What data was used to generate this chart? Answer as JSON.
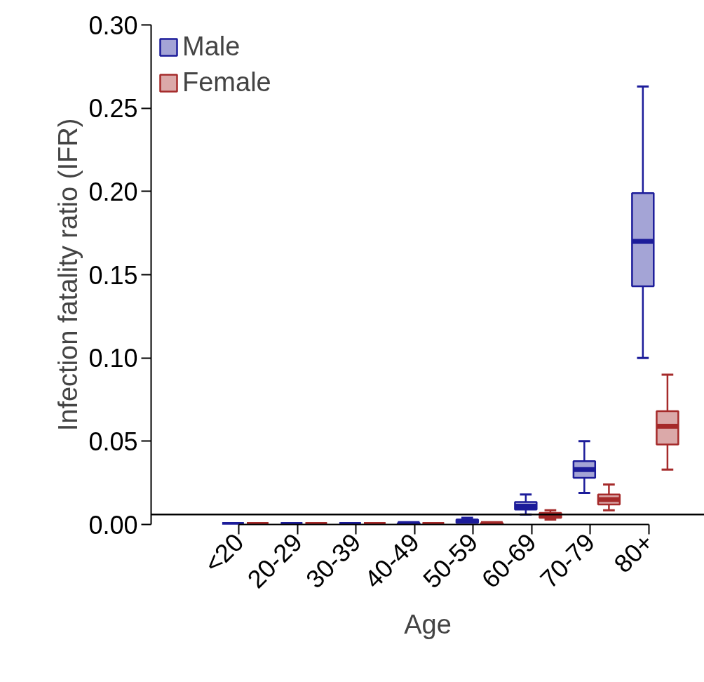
{
  "chart_data": {
    "type": "box",
    "xlabel": "Age",
    "ylabel": "Infection fatality ratio (IFR)",
    "categories": [
      "<20",
      "20-29",
      "30-39",
      "40-49",
      "50-59",
      "60-69",
      "70-79",
      "80+"
    ],
    "ylim": [
      0,
      0.3
    ],
    "yticks": [
      {
        "value": 0,
        "label": "0.00"
      },
      {
        "value": 0.05,
        "label": "0.05"
      },
      {
        "value": 0.1,
        "label": "0.10"
      },
      {
        "value": 0.15,
        "label": "0.15"
      },
      {
        "value": 0.2,
        "label": "0.20"
      },
      {
        "value": 0.25,
        "label": "0.25"
      },
      {
        "value": 0.3,
        "label": "0.30"
      }
    ],
    "legend": "top left",
    "grid": false,
    "ref_lines": [
      {
        "axis": "y",
        "value": 0.006,
        "color": "#000000"
      }
    ],
    "series": [
      {
        "name": "Male",
        "color": "#1c1c9a",
        "boxes": [
          {
            "low": 0,
            "q1": 0,
            "median": 0,
            "q3": 0,
            "high": 0
          },
          {
            "low": 0,
            "q1": 0,
            "median": 0,
            "q3": 0,
            "high": 0
          },
          {
            "low": 0,
            "q1": 0,
            "median": 0,
            "q3": 0,
            "high": 0
          },
          {
            "low": 0,
            "q1": 0,
            "median": 0.0005,
            "q3": 0.001,
            "high": 0.001
          },
          {
            "low": 0.001,
            "q1": 0.001,
            "median": 0.002,
            "q3": 0.003,
            "high": 0.004
          },
          {
            "low": 0.006,
            "q1": 0.009,
            "median": 0.011,
            "q3": 0.0135,
            "high": 0.018
          },
          {
            "low": 0.019,
            "q1": 0.028,
            "median": 0.033,
            "q3": 0.038,
            "high": 0.05
          },
          {
            "low": 0.1,
            "q1": 0.143,
            "median": 0.17,
            "q3": 0.199,
            "high": 0.263
          }
        ]
      },
      {
        "name": "Female",
        "color": "#a52a2a",
        "boxes": [
          {
            "low": 0,
            "q1": 0,
            "median": 0,
            "q3": 0,
            "high": 0
          },
          {
            "low": 0,
            "q1": 0,
            "median": 0,
            "q3": 0,
            "high": 0
          },
          {
            "low": 0,
            "q1": 0,
            "median": 0,
            "q3": 0,
            "high": 0
          },
          {
            "low": 0,
            "q1": 0,
            "median": 0,
            "q3": 0,
            "high": 0
          },
          {
            "low": 0,
            "q1": 0,
            "median": 0.0005,
            "q3": 0.001,
            "high": 0.001
          },
          {
            "low": 0.003,
            "q1": 0.004,
            "median": 0.0055,
            "q3": 0.007,
            "high": 0.0085
          },
          {
            "low": 0.0085,
            "q1": 0.012,
            "median": 0.015,
            "q3": 0.018,
            "high": 0.024
          },
          {
            "low": 0.033,
            "q1": 0.048,
            "median": 0.059,
            "q3": 0.068,
            "high": 0.09
          }
        ]
      }
    ]
  }
}
